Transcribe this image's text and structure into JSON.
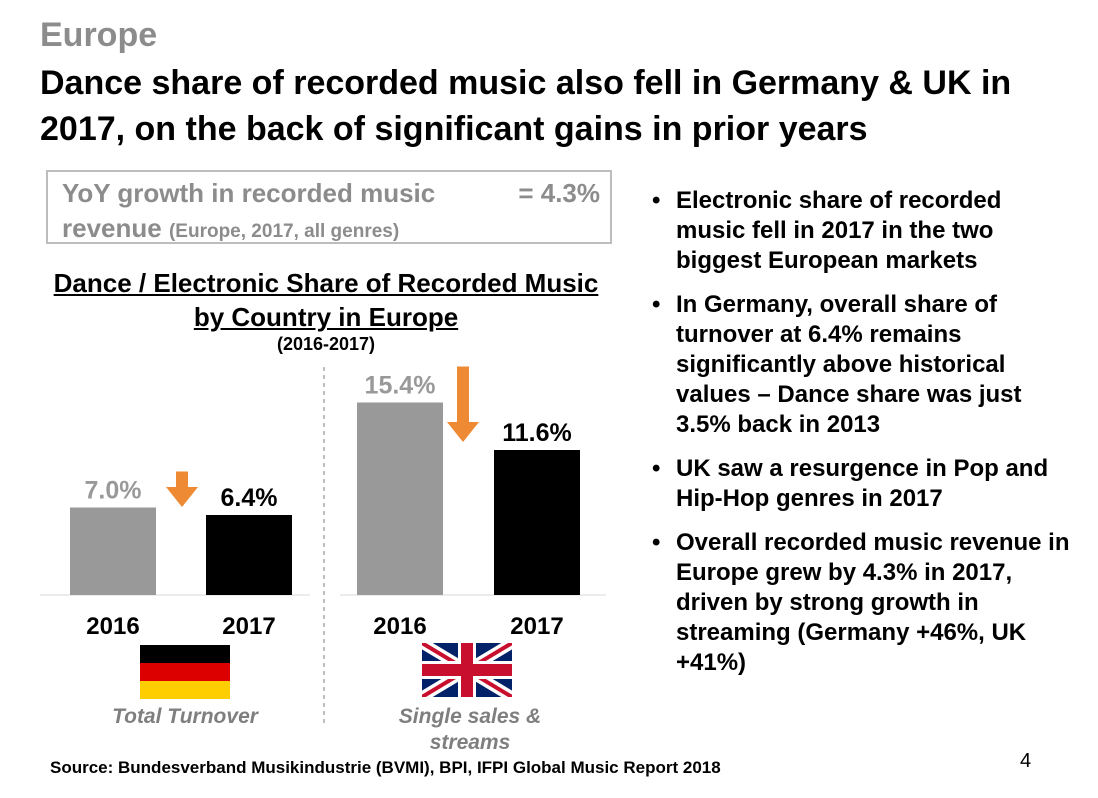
{
  "slide": {
    "region": "Europe",
    "title": "Dance share of recorded music also fell in Germany & UK in 2017, on the back of significant gains in prior years",
    "yoy_box": {
      "label_line1": "YoY growth in recorded music",
      "label_line2": "revenue",
      "note": "(Europe, 2017, all genres)",
      "value": "= 4.3%"
    },
    "bullets": [
      "Electronic share of recorded music fell in 2017 in the two biggest European markets",
      "In Germany, overall share of turnover at 6.4% remains significantly above historical values – Dance share was just 3.5% back in 2013",
      "UK saw a resurgence in Pop and Hip-Hop genres in 2017",
      "Overall recorded music revenue in Europe grew by 4.3% in 2017, driven by strong growth in streaming (Germany +46%, UK +41%)"
    ],
    "source": "Source: Bundesverband Musikindustrie (BVMI), BPI, IFPI Global Music Report 2018",
    "page_number": "4"
  },
  "chart_data": {
    "type": "bar",
    "title": "Dance / Electronic Share of Recorded Music by Country in Europe",
    "subtitle": "(2016-2017)",
    "ylim": [
      0,
      16
    ],
    "grid": false,
    "colors": {
      "y2016": "#999999",
      "y2017": "#000000",
      "arrow": "#ed8a33"
    },
    "groups": [
      {
        "flag_icon": "germany-flag-icon",
        "caption": "Total Turnover",
        "categories": [
          "2016",
          "2017"
        ],
        "values": [
          7.0,
          6.4
        ],
        "labels": [
          "7.0%",
          "6.4%"
        ]
      },
      {
        "flag_icon": "uk-flag-icon",
        "caption": "Single sales & streams",
        "caption_lines": [
          "Single sales &",
          "streams"
        ],
        "categories": [
          "2016",
          "2017"
        ],
        "values": [
          15.4,
          11.6
        ],
        "labels": [
          "15.4%",
          "11.6%"
        ]
      }
    ]
  }
}
